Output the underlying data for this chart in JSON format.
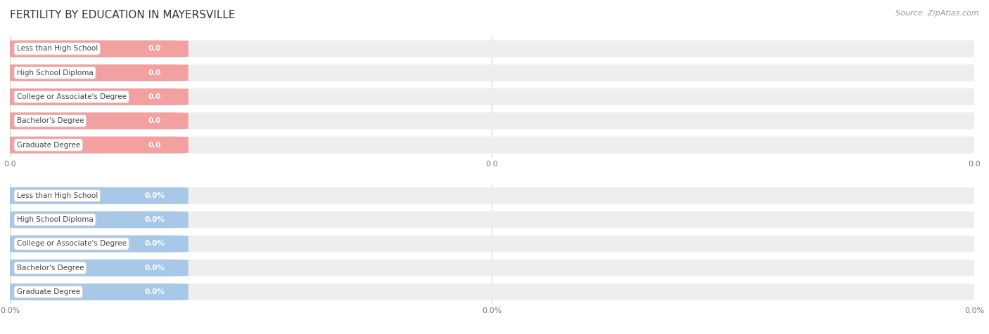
{
  "title": "FERTILITY BY EDUCATION IN MAYERSVILLE",
  "source_text": "Source: ZipAtlas.com",
  "categories": [
    "Less than High School",
    "High School Diploma",
    "College or Associate's Degree",
    "Bachelor's Degree",
    "Graduate Degree"
  ],
  "top_value_labels": [
    "0.0",
    "0.0",
    "0.0",
    "0.0",
    "0.0"
  ],
  "bottom_value_labels": [
    "0.0%",
    "0.0%",
    "0.0%",
    "0.0%",
    "0.0%"
  ],
  "top_bar_color": "#f2a0a0",
  "top_bar_dark_color": "#e07878",
  "bottom_bar_color": "#a8c8e8",
  "bottom_bar_dark_color": "#7aaac8",
  "label_bg_color": "#ffffff",
  "row_bg_color": "#eeeeee",
  "background_color": "#ffffff",
  "title_fontsize": 11,
  "label_fontsize": 7.5,
  "value_fontsize": 7.5,
  "source_fontsize": 8,
  "tick_labels_top": [
    "0.0",
    "0.0",
    "0.0"
  ],
  "tick_labels_bottom": [
    "0.0%",
    "0.0%",
    "0.0%"
  ],
  "grid_color": "#cccccc",
  "figsize": [
    14.06,
    4.76
  ]
}
